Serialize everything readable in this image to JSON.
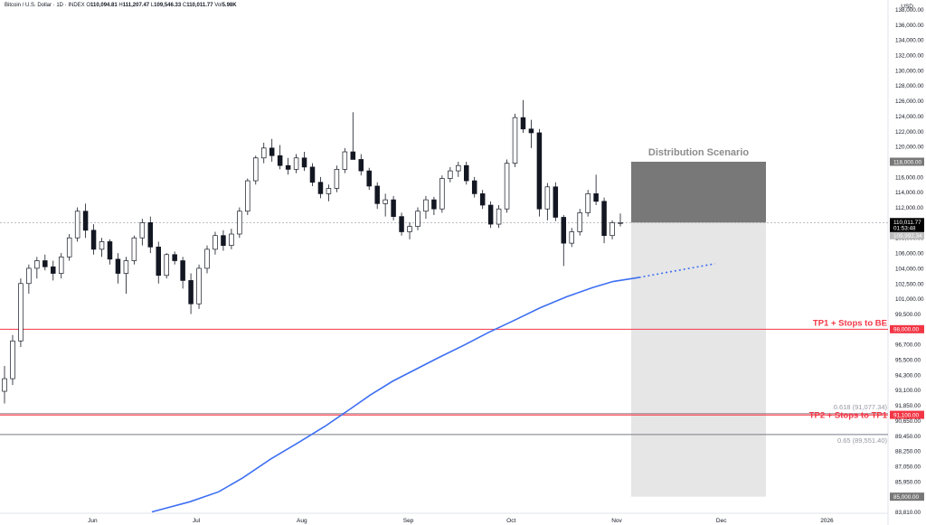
{
  "header": {
    "symbol": "Bitcoin / U.S. Dollar · 1D · INDEX",
    "o_label": "O",
    "o": "110,094.81",
    "h_label": "H",
    "h": "111,207.47",
    "l_label": "L",
    "l": "109,546.33",
    "c_label": "C",
    "c": "110,011.77",
    "vol_label": "Vol",
    "vol": "5.98K"
  },
  "currency": "USD",
  "colors": {
    "up": "#ffffff",
    "down": "#131722",
    "wick": "#131722",
    "ma": "#3d6ff2",
    "red_line": "#f23645",
    "gray_line": "#787b86",
    "zone_dark": "#787878",
    "zone_light": "#e6e6e6"
  },
  "chart_data": {
    "type": "candlestick",
    "x_tick_labels": [
      "Jun",
      "Jul",
      "Aug",
      "Sep",
      "Oct",
      "Nov",
      "Dec",
      "2026"
    ],
    "y_tick_labels": [
      "138,000.00",
      "136,000.00",
      "134,000.00",
      "132,000.00",
      "130,000.00",
      "128,000.00",
      "126,000.00",
      "124,000.00",
      "122,000.00",
      "120,000.00",
      "118,000.00",
      "116,000.00",
      "114,000.00",
      "112,000.00",
      "110,000.00",
      "108,000.00",
      "106,000.00",
      "104,000.00",
      "102,500.00",
      "101,000.00",
      "99,500.00",
      "98,000.00",
      "96,700.00",
      "95,500.00",
      "94,300.00",
      "93,100.00",
      "91,850.00",
      "90,650.00",
      "89,450.00",
      "88,250.00",
      "87,050.00",
      "85,950.00",
      "85,000.00",
      "83,810.00"
    ],
    "ohlc_sampled": [
      [
        93000,
        95000,
        92000,
        94000
      ],
      [
        94000,
        97500,
        93500,
        97000
      ],
      [
        97000,
        103000,
        96500,
        102500
      ],
      [
        102500,
        104500,
        101500,
        104000
      ],
      [
        104000,
        105500,
        103000,
        105000
      ],
      [
        105000,
        105800,
        103800,
        104200
      ],
      [
        104200,
        105000,
        102800,
        103500
      ],
      [
        103500,
        106000,
        103000,
        105500
      ],
      [
        105500,
        108500,
        105000,
        108000
      ],
      [
        108000,
        112000,
        107500,
        111500
      ],
      [
        111500,
        112500,
        108000,
        109000
      ],
      [
        109000,
        109800,
        105800,
        106500
      ],
      [
        106500,
        108000,
        105500,
        107500
      ],
      [
        107500,
        107800,
        104500,
        105200
      ],
      [
        105200,
        106000,
        102500,
        103500
      ],
      [
        103500,
        105500,
        101500,
        105000
      ],
      [
        105000,
        108300,
        104500,
        108000
      ],
      [
        108000,
        110500,
        107000,
        110000
      ],
      [
        110000,
        110800,
        106000,
        106800
      ],
      [
        106800,
        107500,
        102500,
        103300
      ],
      [
        103300,
        106000,
        103000,
        105800
      ],
      [
        105800,
        106200,
        104500,
        105000
      ],
      [
        105000,
        105500,
        102000,
        102800
      ],
      [
        102800,
        103500,
        99500,
        100500
      ],
      [
        100500,
        104500,
        100000,
        104000
      ],
      [
        104000,
        107000,
        103500,
        106500
      ],
      [
        106500,
        108800,
        105800,
        108300
      ],
      [
        108300,
        109000,
        106300,
        107000
      ],
      [
        107000,
        109200,
        106500,
        108500
      ],
      [
        108500,
        112000,
        108000,
        111500
      ],
      [
        111500,
        115800,
        111000,
        115500
      ],
      [
        115500,
        118800,
        115000,
        118500
      ],
      [
        118500,
        120500,
        117800,
        119800
      ],
      [
        119800,
        121000,
        118000,
        118800
      ],
      [
        118800,
        120200,
        117000,
        117500
      ],
      [
        117500,
        118500,
        116300,
        117000
      ],
      [
        117000,
        119000,
        116500,
        118500
      ],
      [
        118500,
        119300,
        116800,
        117300
      ],
      [
        117300,
        117800,
        114800,
        115300
      ],
      [
        115300,
        116000,
        113200,
        113800
      ],
      [
        113800,
        115000,
        112800,
        114500
      ],
      [
        114500,
        117500,
        114000,
        117000
      ],
      [
        117000,
        119800,
        116500,
        119300
      ],
      [
        119300,
        124500,
        118800,
        118300
      ],
      [
        118300,
        119000,
        116200,
        116800
      ],
      [
        116800,
        117200,
        114300,
        114800
      ],
      [
        114800,
        115300,
        111800,
        112500
      ],
      [
        112500,
        113800,
        110800,
        113000
      ],
      [
        113000,
        113500,
        110300,
        110800
      ],
      [
        110800,
        111300,
        108300,
        108800
      ],
      [
        108800,
        110000,
        107800,
        109500
      ],
      [
        109500,
        112000,
        109000,
        111500
      ],
      [
        111500,
        113500,
        110500,
        113000
      ],
      [
        113000,
        113400,
        111000,
        111800
      ],
      [
        111800,
        116200,
        111300,
        115800
      ],
      [
        115800,
        117300,
        115300,
        116800
      ],
      [
        116800,
        118000,
        116000,
        117500
      ],
      [
        117500,
        118000,
        115000,
        115500
      ],
      [
        115500,
        116000,
        113300,
        113800
      ],
      [
        113800,
        114300,
        111800,
        112300
      ],
      [
        112300,
        112800,
        109300,
        109800
      ],
      [
        109800,
        112300,
        109300,
        111800
      ],
      [
        111800,
        118300,
        111300,
        117800
      ],
      [
        117800,
        124300,
        117300,
        123800
      ],
      [
        123800,
        126100,
        121800,
        122300
      ],
      [
        122300,
        123500,
        119800,
        121800
      ],
      [
        121800,
        122300,
        110800,
        111800
      ],
      [
        111800,
        115200,
        110300,
        114700
      ],
      [
        114700,
        115300,
        110200,
        110700
      ],
      [
        110700,
        111000,
        104300,
        107300
      ],
      [
        107300,
        109300,
        106800,
        108800
      ],
      [
        108800,
        111800,
        108300,
        111300
      ],
      [
        111300,
        114300,
        110800,
        113800
      ],
      [
        113800,
        116300,
        112300,
        112800
      ],
      [
        112800,
        113300,
        107300,
        108300
      ],
      [
        108300,
        110300,
        107800,
        110000
      ],
      [
        110000,
        111200,
        109500,
        110011
      ]
    ],
    "distribution_zone": {
      "label": "Distribution Scenario",
      "top": 118000,
      "entry": 110011.77,
      "bottom": 85000,
      "top_label": "118,000.00",
      "bottom_label": "85,000.00"
    },
    "current_price": {
      "value": "110,011.77",
      "countdown": "01:53:48",
      "prev": "109,992.34"
    },
    "levels": [
      {
        "name": "TP1 + Stops to BE",
        "value": 98000,
        "label": "98,000.00",
        "color": "red"
      },
      {
        "name": "TP2 + Stops to TP1",
        "value": 91100,
        "label": "91,100.00",
        "color": "red"
      },
      {
        "name": "0.618 (91,077.34)",
        "value": 91077,
        "label": "",
        "color": "gray"
      },
      {
        "name": "0.65 (89,551.40)",
        "value": 89551,
        "label": "",
        "color": "gray"
      }
    ],
    "moving_average": [
      [
        0.164,
        83810
      ],
      [
        0.205,
        84600
      ],
      [
        0.236,
        85300
      ],
      [
        0.262,
        86200
      ],
      [
        0.292,
        87600
      ],
      [
        0.322,
        88900
      ],
      [
        0.351,
        90200
      ],
      [
        0.377,
        91500
      ],
      [
        0.4,
        92700
      ],
      [
        0.424,
        93800
      ],
      [
        0.448,
        94700
      ],
      [
        0.472,
        95600
      ],
      [
        0.5,
        96600
      ],
      [
        0.527,
        97700
      ],
      [
        0.556,
        98900
      ],
      [
        0.583,
        100100
      ],
      [
        0.612,
        101200
      ],
      [
        0.64,
        102100
      ],
      [
        0.662,
        102700
      ],
      [
        0.69,
        103100
      ]
    ],
    "moving_average_projection": [
      [
        0.69,
        103100
      ],
      [
        0.772,
        104600
      ]
    ]
  }
}
